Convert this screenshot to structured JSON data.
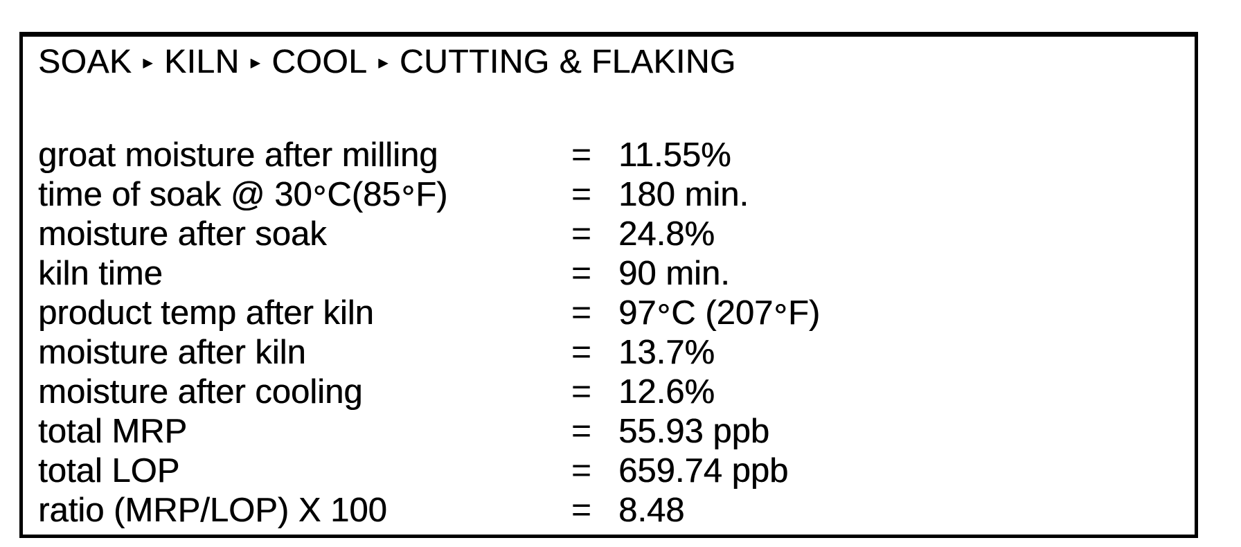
{
  "document": {
    "colors": {
      "text": "#000000",
      "background": "#ffffff",
      "border": "#000000"
    },
    "title": {
      "steps": [
        "SOAK",
        "KILN",
        "COOL",
        "CUTTING & FLAKING"
      ],
      "separator_glyph": "▸"
    },
    "equals_sign": "=",
    "measurements": [
      {
        "label": "groat moisture after milling",
        "value": "11.55%"
      },
      {
        "label": "time of soak @ 30°C(85°F)",
        "value": "180 min."
      },
      {
        "label": "moisture after soak",
        "value": "24.8%"
      },
      {
        "label": "kiln time",
        "value": "90 min."
      },
      {
        "label": "product temp after kiln",
        "value": "97°C (207°F)"
      },
      {
        "label": "moisture after kiln",
        "value": "13.7%"
      },
      {
        "label": "moisture after cooling",
        "value": "12.6%"
      },
      {
        "label": "total MRP",
        "value": "55.93 ppb"
      },
      {
        "label": "total LOP",
        "value": "659.74 ppb"
      },
      {
        "label": "ratio (MRP/LOP) X 100",
        "value": "8.48"
      }
    ]
  }
}
